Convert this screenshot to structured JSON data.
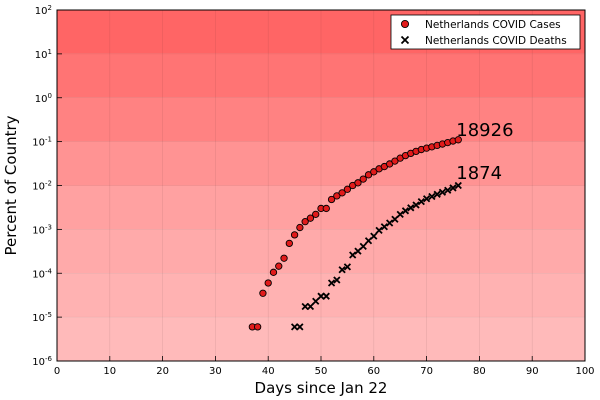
{
  "chart_data": {
    "type": "scatter",
    "xlabel": "Days since Jan 22",
    "ylabel": "Percent of Country",
    "xlim": [
      0,
      100
    ],
    "ylim_log10": [
      -6,
      2
    ],
    "y_scale": "log10",
    "grid": true,
    "legend_placement": "top-right",
    "x_ticks": [
      "0",
      "10",
      "20",
      "30",
      "40",
      "50",
      "60",
      "70",
      "80",
      "90",
      "100"
    ],
    "y_ticks": [
      {
        "base": "10",
        "exp": "-6"
      },
      {
        "base": "10",
        "exp": "-5"
      },
      {
        "base": "10",
        "exp": "-4"
      },
      {
        "base": "10",
        "exp": "-3"
      },
      {
        "base": "10",
        "exp": "-2"
      },
      {
        "base": "10",
        "exp": "-1"
      },
      {
        "base": "10",
        "exp": "0"
      },
      {
        "base": "10",
        "exp": "1"
      },
      {
        "base": "10",
        "exp": "2"
      }
    ],
    "background_bands": [
      {
        "from": -6,
        "to": -5,
        "color": "#ffbaba"
      },
      {
        "from": -5,
        "to": -4,
        "color": "#ffb2b2"
      },
      {
        "from": -4,
        "to": -3,
        "color": "#ffaaaa"
      },
      {
        "from": -3,
        "to": -2,
        "color": "#ffa1a1"
      },
      {
        "from": -2,
        "to": -1,
        "color": "#ff9393"
      },
      {
        "from": -1,
        "to": 0,
        "color": "#ff8282"
      },
      {
        "from": 0,
        "to": 1,
        "color": "#ff7474"
      },
      {
        "from": 1,
        "to": 2,
        "color": "#ff6565"
      }
    ],
    "series": [
      {
        "name": "Netherlands COVID Cases",
        "marker": "circle",
        "color": "#e11b1b",
        "points": [
          [
            37,
            6e-06
          ],
          [
            38,
            6e-06
          ],
          [
            39,
            3.5e-05
          ],
          [
            40,
            6e-05
          ],
          [
            41,
            0.000105
          ],
          [
            42,
            0.000145
          ],
          [
            43,
            0.00022
          ],
          [
            44,
            0.00048
          ],
          [
            45,
            0.00075
          ],
          [
            46,
            0.0011
          ],
          [
            47,
            0.0015
          ],
          [
            48,
            0.0018
          ],
          [
            49,
            0.0022
          ],
          [
            50,
            0.003
          ],
          [
            51,
            0.003
          ],
          [
            52,
            0.0048
          ],
          [
            53,
            0.0058
          ],
          [
            54,
            0.0068
          ],
          [
            55,
            0.0082
          ],
          [
            56,
            0.01
          ],
          [
            57,
            0.0115
          ],
          [
            58,
            0.014
          ],
          [
            59,
            0.0175
          ],
          [
            60,
            0.0205
          ],
          [
            61,
            0.024
          ],
          [
            62,
            0.027
          ],
          [
            63,
            0.031
          ],
          [
            64,
            0.036
          ],
          [
            65,
            0.042
          ],
          [
            66,
            0.048
          ],
          [
            67,
            0.054
          ],
          [
            68,
            0.06
          ],
          [
            69,
            0.066
          ],
          [
            70,
            0.071
          ],
          [
            71,
            0.076
          ],
          [
            72,
            0.082
          ],
          [
            73,
            0.088
          ],
          [
            74,
            0.095
          ],
          [
            75,
            0.103
          ],
          [
            76,
            0.11
          ]
        ]
      },
      {
        "name": "Netherlands COVID Deaths",
        "marker": "x",
        "color": "#000000",
        "points": [
          [
            45,
            6e-06
          ],
          [
            46,
            6e-06
          ],
          [
            47,
            1.75e-05
          ],
          [
            48,
            1.75e-05
          ],
          [
            49,
            2.3e-05
          ],
          [
            50,
            3e-05
          ],
          [
            51,
            3e-05
          ],
          [
            52,
            6e-05
          ],
          [
            53,
            7e-05
          ],
          [
            54,
            0.00012
          ],
          [
            55,
            0.00014
          ],
          [
            56,
            0.00026
          ],
          [
            57,
            0.00032
          ],
          [
            58,
            0.00041
          ],
          [
            59,
            0.00055
          ],
          [
            60,
            0.0007
          ],
          [
            61,
            0.00095
          ],
          [
            62,
            0.00115
          ],
          [
            63,
            0.0014
          ],
          [
            64,
            0.0017
          ],
          [
            65,
            0.0022
          ],
          [
            66,
            0.00265
          ],
          [
            67,
            0.0031
          ],
          [
            68,
            0.0036
          ],
          [
            69,
            0.0043
          ],
          [
            70,
            0.005
          ],
          [
            71,
            0.0056
          ],
          [
            72,
            0.0063
          ],
          [
            73,
            0.007
          ],
          [
            74,
            0.0078
          ],
          [
            75,
            0.0088
          ],
          [
            76,
            0.01
          ]
        ]
      }
    ],
    "annotations": [
      {
        "text": "18926",
        "x": 76,
        "y": 0.11
      },
      {
        "text": "1874",
        "x": 76,
        "y": 0.0115
      }
    ]
  }
}
